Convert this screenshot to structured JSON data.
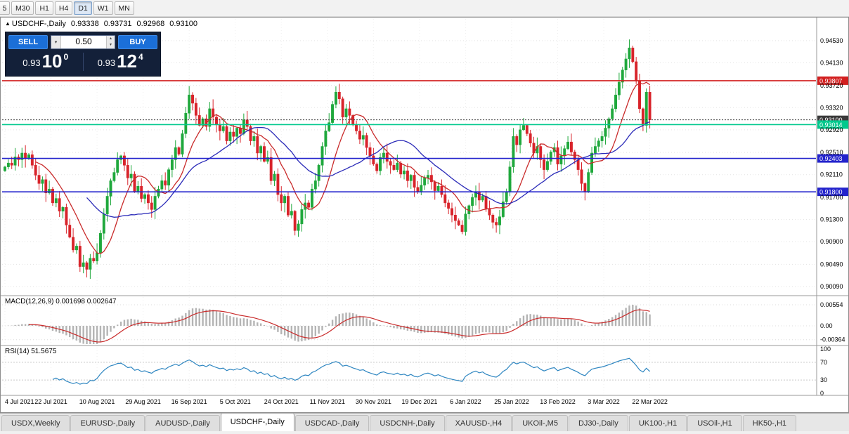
{
  "toolbar": {
    "timeframes": [
      {
        "label": "5"
      },
      {
        "label": "M30"
      },
      {
        "label": "H1"
      },
      {
        "label": "H4"
      },
      {
        "label": "D1",
        "active": true
      },
      {
        "label": "W1"
      },
      {
        "label": "MN"
      }
    ]
  },
  "chart_info": {
    "collapse_icon": "▲",
    "title": "USDCHF-,Daily",
    "open": "0.93338",
    "high": "0.93731",
    "low": "0.92968",
    "close": "0.93100"
  },
  "trade_panel": {
    "sell_label": "SELL",
    "buy_label": "BUY",
    "volume": "0.50",
    "dropdown_icon": "▾",
    "spinner_up_icon": "▴",
    "spinner_down_icon": "▾",
    "sell_price_small": "0.93",
    "sell_price_big": "10",
    "sell_price_sup": "0",
    "buy_price_small": "0.93",
    "buy_price_big": "12",
    "buy_price_sup": "4"
  },
  "indicators": {
    "macd_label": "MACD(12,26,9) 0.001698 0.002647",
    "rsi_label": "RSI(14) 51.5675"
  },
  "axes": {
    "price_ticks": [
      "0.94530",
      "0.94130",
      "0.93720",
      "0.93320",
      "0.92920",
      "0.92510",
      "0.92110",
      "0.91700",
      "0.91300",
      "0.90900",
      "0.90490",
      "0.90090"
    ],
    "macd_ticks": [
      "0.00554",
      "0.00",
      "-0.00364"
    ],
    "rsi_ticks": [
      "100",
      "70",
      "30",
      "0"
    ],
    "date_ticks": [
      "4 Jul 2021",
      "22 Jul 2021",
      "10 Aug 2021",
      "29 Aug 2021",
      "16 Sep 2021",
      "5 Oct 2021",
      "24 Oct 2021",
      "11 Nov 2021",
      "30 Nov 2021",
      "19 Dec 2021",
      "6 Jan 2022",
      "25 Jan 2022",
      "13 Feb 2022",
      "3 Mar 2022",
      "22 Mar 2022"
    ]
  },
  "levels": [
    {
      "label": "0.93807",
      "value": 0.93807,
      "color": "#D21F1F",
      "style": "solid"
    },
    {
      "label": "0.93100",
      "value": 0.931,
      "color": "#3A3A3A",
      "style": "dotted"
    },
    {
      "label": "0.93014",
      "value": 0.93014,
      "color": "#00C98D",
      "style": "solid"
    },
    {
      "label": "0.92403",
      "value": 0.92403,
      "color": "#2323CC",
      "style": "solid"
    },
    {
      "label": "0.91800",
      "value": 0.918,
      "color": "#2323CC",
      "style": "solid"
    }
  ],
  "tabs": [
    {
      "label": "USDX,Weekly"
    },
    {
      "label": "EURUSD-,Daily"
    },
    {
      "label": "AUDUSD-,Daily"
    },
    {
      "label": "USDCHF-,Daily",
      "active": true
    },
    {
      "label": "USDCAD-,Daily"
    },
    {
      "label": "USDCNH-,Daily"
    },
    {
      "label": "XAUUSD-,H4"
    },
    {
      "label": "UKOil-,M5"
    },
    {
      "label": "DJ30-,Daily"
    },
    {
      "label": "UK100-,H1"
    },
    {
      "label": "USOil-,H1"
    },
    {
      "label": "HK50-,H1"
    }
  ],
  "chart_data": {
    "type": "candlestick",
    "symbol": "USDCHF-",
    "timeframe": "Daily",
    "ohlc_current": {
      "open": 0.93338,
      "high": 0.93731,
      "low": 0.92968,
      "close": 0.931
    },
    "ylim": [
      0.8995,
      0.94922
    ],
    "first_open": 0.9218,
    "closes": [
      0.9225,
      0.9232,
      0.9228,
      0.9243,
      0.9238,
      0.925,
      0.9241,
      0.9247,
      0.9228,
      0.921,
      0.9195,
      0.9202,
      0.9178,
      0.9185,
      0.916,
      0.9168,
      0.9145,
      0.9152,
      0.912,
      0.9098,
      0.9075,
      0.9082,
      0.9045,
      0.9052,
      0.904,
      0.906,
      0.9055,
      0.907,
      0.9105,
      0.914,
      0.9172,
      0.92,
      0.9215,
      0.9238,
      0.9245,
      0.9228,
      0.9205,
      0.9212,
      0.918,
      0.919,
      0.9168,
      0.9175,
      0.916,
      0.9148,
      0.9172,
      0.9185,
      0.92,
      0.9192,
      0.922,
      0.9238,
      0.926,
      0.9248,
      0.9285,
      0.9322,
      0.9355,
      0.934,
      0.9318,
      0.93,
      0.9312,
      0.9298,
      0.933,
      0.9315,
      0.9302,
      0.929,
      0.9298,
      0.9272,
      0.9288,
      0.928,
      0.9295,
      0.9285,
      0.931,
      0.9298,
      0.9272,
      0.928,
      0.925,
      0.9262,
      0.9235,
      0.9242,
      0.92,
      0.9212,
      0.9175,
      0.916,
      0.9172,
      0.9138,
      0.9145,
      0.911,
      0.9122,
      0.9148,
      0.916,
      0.9152,
      0.9185,
      0.92,
      0.9228,
      0.9262,
      0.929,
      0.9305,
      0.9338,
      0.936,
      0.9348,
      0.9315,
      0.933,
      0.9318,
      0.9302,
      0.929,
      0.9275,
      0.9282,
      0.926,
      0.9245,
      0.923,
      0.9218,
      0.9242,
      0.925,
      0.9235,
      0.9228,
      0.922,
      0.9232,
      0.9212,
      0.9218,
      0.92,
      0.921,
      0.9188,
      0.918,
      0.9192,
      0.9205,
      0.921,
      0.9198,
      0.9182,
      0.919,
      0.9175,
      0.916,
      0.915,
      0.9138,
      0.9128,
      0.912,
      0.9108,
      0.914,
      0.9155,
      0.917,
      0.918,
      0.9165,
      0.9172,
      0.915,
      0.9138,
      0.9125,
      0.912,
      0.9135,
      0.9162,
      0.918,
      0.9225,
      0.928,
      0.9265,
      0.9292,
      0.93,
      0.9285,
      0.9268,
      0.925,
      0.9262,
      0.9238,
      0.922,
      0.9235,
      0.9252,
      0.926,
      0.923,
      0.9245,
      0.9258,
      0.927,
      0.9252,
      0.9238,
      0.922,
      0.9195,
      0.918,
      0.9215,
      0.925,
      0.9262,
      0.9272,
      0.928,
      0.9295,
      0.9312,
      0.933,
      0.9355,
      0.9378,
      0.94,
      0.942,
      0.944,
      0.9415,
      0.938,
      0.933,
      0.93,
      0.936,
      0.931
    ],
    "overlays": [
      {
        "name": "ma-fast",
        "period": 10,
        "color": "#C92B2B"
      },
      {
        "name": "ma-slow",
        "period": 25,
        "color": "#2B2BB8"
      }
    ],
    "macd": {
      "fast": 12,
      "slow": 26,
      "signal": 9,
      "current": [
        0.001698,
        0.002647
      ],
      "ylim": [
        -0.00499,
        0.00775
      ]
    },
    "rsi": {
      "period": 14,
      "current": 51.5675,
      "ylim": [
        0,
        100
      ],
      "levels": [
        70,
        30
      ]
    },
    "colors": {
      "up": "#1FA83C",
      "down": "#D8232A",
      "macd_hist": "#B4B4B4",
      "macd_signal": "#C92B2B",
      "rsi_line": "#2E86C1",
      "grid": "#E3E3E3"
    }
  }
}
